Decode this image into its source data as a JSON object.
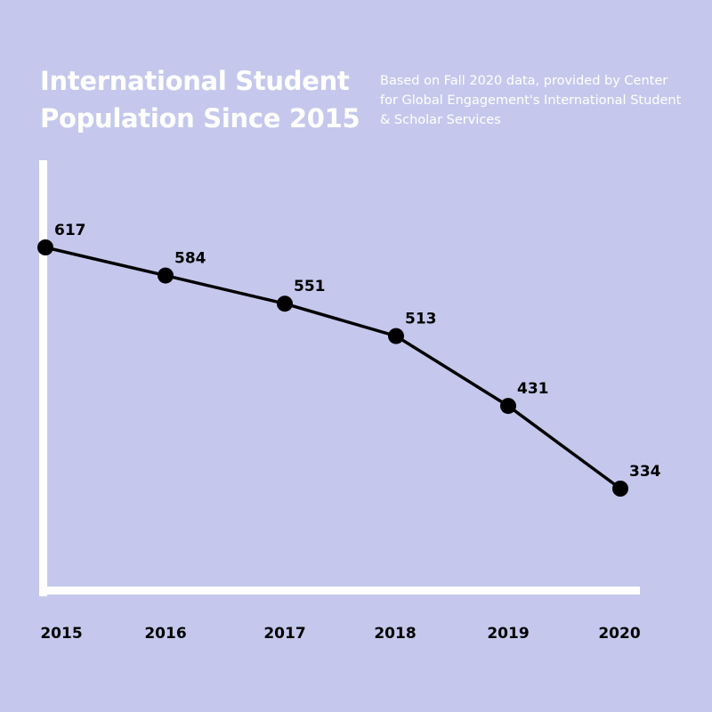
{
  "chart_data": {
    "type": "line",
    "title": "International Student Population Since 2015",
    "subtitle": "Based on Fall 2020 data, provided by Center for Global Engagement's International Student & Scholar Services",
    "xlabel": "",
    "ylabel": "",
    "categories": [
      "2015",
      "2016",
      "2017",
      "2018",
      "2019",
      "2020"
    ],
    "values": [
      617,
      584,
      551,
      513,
      431,
      334
    ],
    "grid": false,
    "colors": {
      "background": "#c5c8ec",
      "line": "#000000",
      "axis": "#ffffff",
      "title": "#ffffff"
    }
  }
}
